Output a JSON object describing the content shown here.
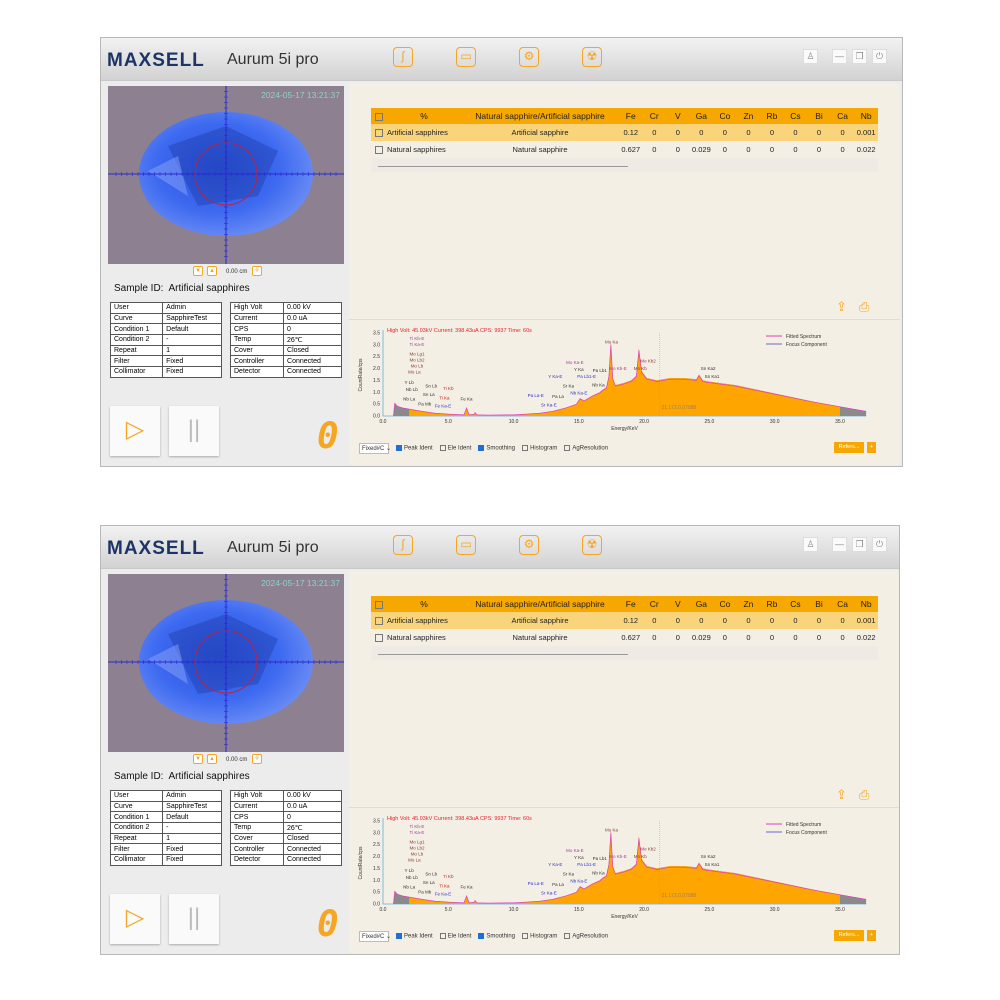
{
  "header": {
    "logo": "MAXSELL",
    "product": "Aurum 5i pro",
    "toolbar_icons": [
      "curve-icon",
      "folder-icon",
      "gears-icon",
      "radiation-icon"
    ],
    "window_icons": [
      "user-icon",
      "minimize-icon",
      "restore-icon",
      "power-icon"
    ]
  },
  "camera": {
    "timestamp": "2024-05-17 13:21:37",
    "distance": "0.00 cm"
  },
  "sample": {
    "label": "Sample ID:",
    "value": "Artificial sapphires"
  },
  "info_left": [
    [
      "User",
      "Admin"
    ],
    [
      "Curve",
      "SapphireTest"
    ],
    [
      "Condition 1",
      "Default"
    ],
    [
      "Condition 2",
      "-"
    ],
    [
      "Repeat",
      "1"
    ],
    [
      "Filter",
      "Fixed"
    ],
    [
      "Collimator",
      "Fixed"
    ]
  ],
  "info_right": [
    [
      "High Volt",
      "0.00 kV"
    ],
    [
      "Current",
      "0.0 uA"
    ],
    [
      "CPS",
      "0"
    ],
    [
      "Temp",
      "26℃"
    ],
    [
      "Cover",
      "Closed"
    ],
    [
      "Controller",
      "Connected"
    ],
    [
      "Detector",
      "Connected"
    ]
  ],
  "counter": "0",
  "results": {
    "headers": [
      "%",
      "Natural sapphire/Artificial sapphire",
      "Fe",
      "Cr",
      "V",
      "Ga",
      "Co",
      "Zn",
      "Rb",
      "Cs",
      "Bi",
      "Ca",
      "Nb"
    ],
    "rows": [
      {
        "name": "Artificial sapphires",
        "category": "Artificial sapphire",
        "values": [
          "0.12",
          "0",
          "0",
          "0",
          "0",
          "0",
          "0",
          "0",
          "0",
          "0",
          "0.001"
        ],
        "selected": true
      },
      {
        "name": "Natural sapphires",
        "category": "Natural sapphire",
        "values": [
          "0.627",
          "0",
          "0",
          "0.029",
          "0",
          "0",
          "0",
          "0",
          "0",
          "0",
          "0.022"
        ],
        "selected": false
      }
    ]
  },
  "options": {
    "mode": "Fixed#C",
    "checks": [
      {
        "label": "Peak Ident",
        "checked": true
      },
      {
        "label": "Ele Ident",
        "checked": false
      },
      {
        "label": "Smoothing",
        "checked": true
      },
      {
        "label": "Histogram",
        "checked": false
      },
      {
        "label": "AgResolution",
        "checked": false
      }
    ],
    "refer_label": "Refers...",
    "plus_label": "+"
  },
  "colors": {
    "accent": "#f7a800",
    "fill": "#ffa500",
    "fitted": "#e040c0",
    "focus": "#6a6ad0",
    "status": "#e8202a"
  },
  "chart_data": {
    "type": "area",
    "status": "High Volt: 45.03kV  Current: 398.43uA  CPS: 9937  Time: 60s",
    "xlabel": "Energy/KeV",
    "ylabel": "CountRate/cps",
    "xlim": [
      0,
      37
    ],
    "ylim": [
      0,
      3.5
    ],
    "xticks": [
      "0.0",
      "5.0",
      "10.0",
      "15.0",
      "20.0",
      "25.0",
      "30.0",
      "35.0"
    ],
    "yticks": [
      "0.0",
      "0.5",
      "1.0",
      "1.5",
      "2.0",
      "2.5",
      "3.0",
      "3.5"
    ],
    "legend": [
      "Fitted Spectrum",
      "Focus Component"
    ],
    "legend_position": "top-right",
    "focus_range": [
      2.0,
      35.0
    ],
    "cursor": {
      "x": 21.172,
      "y": 0.07088,
      "label": "21.172,0.07088"
    },
    "spectrum": [
      [
        0.8,
        0
      ],
      [
        0.9,
        0.55
      ],
      [
        1.1,
        0.42
      ],
      [
        1.5,
        0.35
      ],
      [
        2,
        0.3
      ],
      [
        2.5,
        0.25
      ],
      [
        3,
        0.2
      ],
      [
        4,
        0.12
      ],
      [
        5,
        0.08
      ],
      [
        6.2,
        0.05
      ],
      [
        6.4,
        0.35
      ],
      [
        6.6,
        0.05
      ],
      [
        7,
        0.08
      ],
      [
        7.05,
        0.15
      ],
      [
        7.2,
        0.05
      ],
      [
        8,
        0.04
      ],
      [
        10,
        0.05
      ],
      [
        11,
        0.08
      ],
      [
        12,
        0.12
      ],
      [
        13,
        0.2
      ],
      [
        14,
        0.35
      ],
      [
        14.8,
        0.5
      ],
      [
        15.1,
        0.75
      ],
      [
        15.4,
        0.65
      ],
      [
        16,
        0.85
      ],
      [
        16.6,
        1.0
      ],
      [
        16.8,
        1.1
      ],
      [
        17.1,
        1.2
      ],
      [
        17.3,
        1.7
      ],
      [
        17.45,
        3.1
      ],
      [
        17.6,
        1.6
      ],
      [
        17.8,
        1.3
      ],
      [
        18.5,
        1.4
      ],
      [
        19,
        1.5
      ],
      [
        19.4,
        1.7
      ],
      [
        19.6,
        2.85
      ],
      [
        19.8,
        1.9
      ],
      [
        20.2,
        1.6
      ],
      [
        21,
        1.5
      ],
      [
        22,
        1.6
      ],
      [
        23,
        1.6
      ],
      [
        24,
        1.55
      ],
      [
        24.2,
        1.75
      ],
      [
        24.5,
        1.5
      ],
      [
        25,
        1.45
      ],
      [
        27,
        1.3
      ],
      [
        30,
        0.95
      ],
      [
        33,
        0.6
      ],
      [
        35,
        0.4
      ],
      [
        37,
        0.2
      ]
    ],
    "peak_labels": [
      {
        "text": "Ti Kb-E",
        "x": 2.6,
        "y": 3.2,
        "color": "#a040a0"
      },
      {
        "text": "Ti Ka-E",
        "x": 2.6,
        "y": 3.0,
        "color": "#a040a0"
      },
      {
        "text": "Mo Lg1",
        "x": 2.6,
        "y": 2.55,
        "color": "#8b3a3a"
      },
      {
        "text": "Mo Lb2",
        "x": 2.6,
        "y": 2.3,
        "color": "#8b3a3a"
      },
      {
        "text": "Mo Lb",
        "x": 2.6,
        "y": 2.05,
        "color": "#8b3a3a"
      },
      {
        "text": "Mo La",
        "x": 2.4,
        "y": 1.8,
        "color": "#8b3a3a"
      },
      {
        "text": "Y Lb",
        "x": 2.0,
        "y": 1.35,
        "color": "#333"
      },
      {
        "text": "Nb Lb",
        "x": 2.2,
        "y": 1.05,
        "color": "#333"
      },
      {
        "text": "Nb La",
        "x": 2.0,
        "y": 0.65,
        "color": "#333"
      },
      {
        "text": "Pa Mb",
        "x": 3.2,
        "y": 0.45,
        "color": "#333"
      },
      {
        "text": "Sn Lb",
        "x": 3.7,
        "y": 1.2,
        "color": "#333"
      },
      {
        "text": "Sn La",
        "x": 3.5,
        "y": 0.85,
        "color": "#333"
      },
      {
        "text": "Ti Kb",
        "x": 5.0,
        "y": 1.1,
        "color": "#d02020"
      },
      {
        "text": "Ti Ka",
        "x": 4.7,
        "y": 0.7,
        "color": "#d02020"
      },
      {
        "text": "Fe Ka-E",
        "x": 4.6,
        "y": 0.35,
        "color": "#3030d0"
      },
      {
        "text": "Fe Ka",
        "x": 6.4,
        "y": 0.65,
        "color": "#333"
      },
      {
        "text": "Pa La-E",
        "x": 11.7,
        "y": 0.8,
        "color": "#3030d0"
      },
      {
        "text": "Sr Ka-E",
        "x": 12.7,
        "y": 0.4,
        "color": "#3030d0"
      },
      {
        "text": "Pa La",
        "x": 13.4,
        "y": 0.75,
        "color": "#333"
      },
      {
        "text": "Sr Ka",
        "x": 14.2,
        "y": 1.2,
        "color": "#333"
      },
      {
        "text": "Y Ka-E",
        "x": 13.2,
        "y": 1.6,
        "color": "#3030d0"
      },
      {
        "text": "Y Ka",
        "x": 15.0,
        "y": 1.9,
        "color": "#333"
      },
      {
        "text": "Pa Lb1-E",
        "x": 15.6,
        "y": 1.6,
        "color": "#3030d0"
      },
      {
        "text": "Nb Ka-E",
        "x": 15.0,
        "y": 0.9,
        "color": "#3030d0"
      },
      {
        "text": "Mo Ka-E",
        "x": 14.7,
        "y": 2.2,
        "color": "#a040a0"
      },
      {
        "text": "Pa Lb1",
        "x": 16.6,
        "y": 1.65,
        "color": "#333"
      },
      {
        "text": "Nb Ka",
        "x": 16.5,
        "y": 1.25,
        "color": "#333"
      },
      {
        "text": "Mo Ka",
        "x": 17.5,
        "y": 3.05,
        "color": "#8b3a3a"
      },
      {
        "text": "Mo Kb-E",
        "x": 18.0,
        "y": 1.95,
        "color": "#a040a0"
      },
      {
        "text": "Mo Kb2",
        "x": 20.3,
        "y": 2.25,
        "color": "#8b3a3a"
      },
      {
        "text": "Mo Kb",
        "x": 19.7,
        "y": 1.95,
        "color": "#8b3a3a"
      },
      {
        "text": "Sn Ka2",
        "x": 24.9,
        "y": 1.95,
        "color": "#333"
      },
      {
        "text": "Sn Ka1",
        "x": 25.2,
        "y": 1.6,
        "color": "#333"
      }
    ]
  }
}
